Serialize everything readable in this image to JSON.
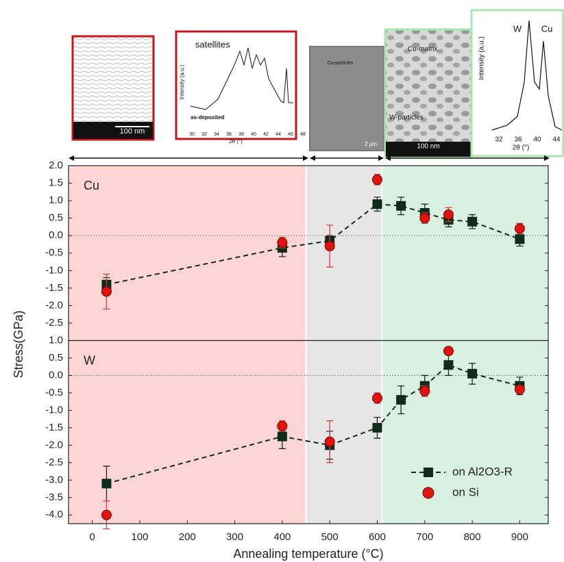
{
  "chart_data": [
    {
      "type": "scatter",
      "panel_label": "Cu",
      "ylabel": "Stress(GPa)",
      "xlim": [
        -50,
        960
      ],
      "ylim": [
        -3.0,
        2.0
      ],
      "yticks": [
        {
          "value": 2,
          "label": "2.0"
        },
        1.5,
        {
          "value": 1,
          "label": "1.0"
        },
        0.5,
        {
          "value": 0,
          "label": "0.0"
        },
        -0.5,
        {
          "value": -1,
          "label": "-1.0"
        },
        -1.5,
        {
          "value": -2,
          "label": "-2.0"
        },
        -2.5
      ],
      "zero_line": true,
      "region_edges": [
        450,
        610
      ],
      "region_colors": [
        "#fdd5d5",
        "#e6e6e6",
        "#d7f0df"
      ],
      "series": [
        {
          "color": "#0f2b1c",
          "marker": "square",
          "line": "dashed",
          "x": [
            30,
            400,
            500,
            600,
            650,
            700,
            750,
            800,
            900
          ],
          "values": [
            -1.4,
            -0.35,
            -0.15,
            0.9,
            0.85,
            0.65,
            0.45,
            0.4,
            -0.1
          ],
          "errors": [
            0.2,
            0.25,
            0.15,
            0.2,
            0.25,
            0.25,
            0.2,
            0.2,
            0.2
          ]
        },
        {
          "color": "#e0140f",
          "marker": "circle",
          "x": [
            30,
            400,
            500,
            600,
            700,
            750,
            900
          ],
          "values": [
            -1.6,
            -0.2,
            -0.3,
            1.6,
            0.5,
            0.6,
            0.2
          ],
          "errors": [
            0.5,
            0.15,
            0.6,
            0.15,
            0.15,
            0.2,
            0.15
          ]
        }
      ]
    },
    {
      "type": "scatter",
      "panel_label": "W",
      "xlabel": "Annealing temperature (°C)",
      "xlim": [
        -50,
        960
      ],
      "ylim": [
        -4.25,
        1.0
      ],
      "xticks": [
        0,
        100,
        200,
        300,
        400,
        500,
        600,
        700,
        800,
        900
      ],
      "yticks": [
        {
          "value": 1,
          "label": "1.0"
        },
        0.5,
        {
          "value": 0,
          "label": "0.0"
        },
        -0.5,
        {
          "value": -1,
          "label": "-1.0"
        },
        -1.5,
        {
          "value": -2,
          "label": "-2.0"
        },
        -2.5,
        {
          "value": -3,
          "label": "-3.0"
        },
        -3.5,
        {
          "value": -4,
          "label": "-4.0"
        }
      ],
      "zero_line": true,
      "region_edges": [
        450,
        610
      ],
      "region_colors": [
        "#fdd5d5",
        "#e6e6e6",
        "#d7f0df"
      ],
      "legend": "lower right",
      "series": [
        {
          "name": "on Al2O3-R",
          "color": "#0f2b1c",
          "marker": "square",
          "line": "dashed",
          "x": [
            30,
            400,
            500,
            600,
            650,
            700,
            750,
            800,
            900
          ],
          "values": [
            -3.1,
            -1.75,
            -2.0,
            -1.5,
            -0.7,
            -0.3,
            0.3,
            0.05,
            -0.3
          ],
          "errors": [
            0.5,
            0.35,
            0.4,
            0.3,
            0.4,
            0.3,
            0.3,
            0.3,
            0.25
          ]
        },
        {
          "name": "on Si",
          "color": "#e0140f",
          "marker": "circle",
          "x": [
            30,
            400,
            500,
            600,
            700,
            750,
            900
          ],
          "values": [
            -4.0,
            -1.45,
            -1.9,
            -0.65,
            -0.45,
            0.7,
            -0.4
          ],
          "errors": [
            0.4,
            0.15,
            0.6,
            0.15,
            0.15,
            0.1,
            0.1
          ]
        }
      ]
    }
  ],
  "insets": {
    "sem1": {
      "scale": "100 nm"
    },
    "xrd1": {
      "title": "satellites",
      "ylabel": "Intensity (a.u.)",
      "note": "as-deposited",
      "xticks": [
        "30",
        "32",
        "34",
        "36",
        "38",
        "40",
        "42",
        "44",
        "46",
        "48"
      ],
      "xlabel": "2θ (°)"
    },
    "sem2": {
      "label": "Cu-particles",
      "scale": "2 µm"
    },
    "sem3": {
      "label1": "Cu-matrix",
      "label2": "W-particles",
      "scale": "100 nm"
    },
    "xrd2": {
      "peak1": "W",
      "peak2": "Cu",
      "ylabel": "Intensity (a.u.)",
      "xticks": [
        "32",
        "36",
        "40",
        "44"
      ],
      "xlabel": "2θ (°)"
    }
  }
}
